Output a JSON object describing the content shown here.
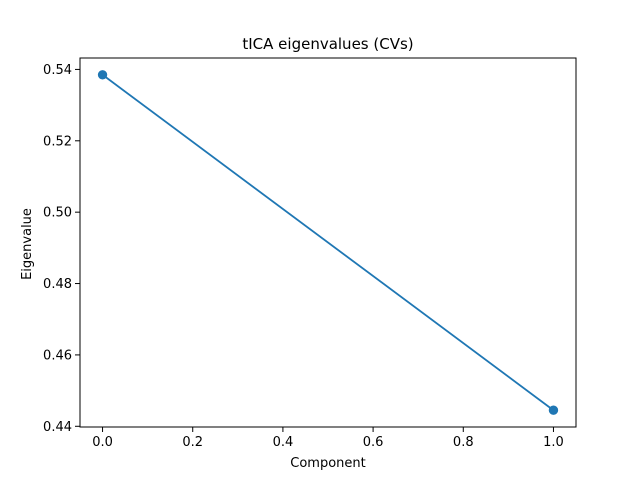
{
  "chart_data": {
    "type": "line",
    "title": "tICA eigenvalues (CVs)",
    "xlabel": "Component",
    "ylabel": "Eigenvalue",
    "x": [
      0.0,
      1.0
    ],
    "series": [
      {
        "values": [
          0.5385,
          0.4445
        ],
        "color": "#1f77b4",
        "marker": "circle"
      }
    ],
    "xlim": [
      -0.05,
      1.05
    ],
    "ylim": [
      0.4398,
      0.5432
    ],
    "xticks": [
      0.0,
      0.2,
      0.4,
      0.6,
      0.8,
      1.0
    ],
    "xtick_labels": [
      "0.0",
      "0.2",
      "0.4",
      "0.6",
      "0.8",
      "1.0"
    ],
    "yticks": [
      0.44,
      0.46,
      0.48,
      0.5,
      0.52,
      0.54
    ],
    "ytick_labels": [
      "0.44",
      "0.46",
      "0.48",
      "0.50",
      "0.52",
      "0.54"
    ],
    "grid": false,
    "legend": "none"
  }
}
